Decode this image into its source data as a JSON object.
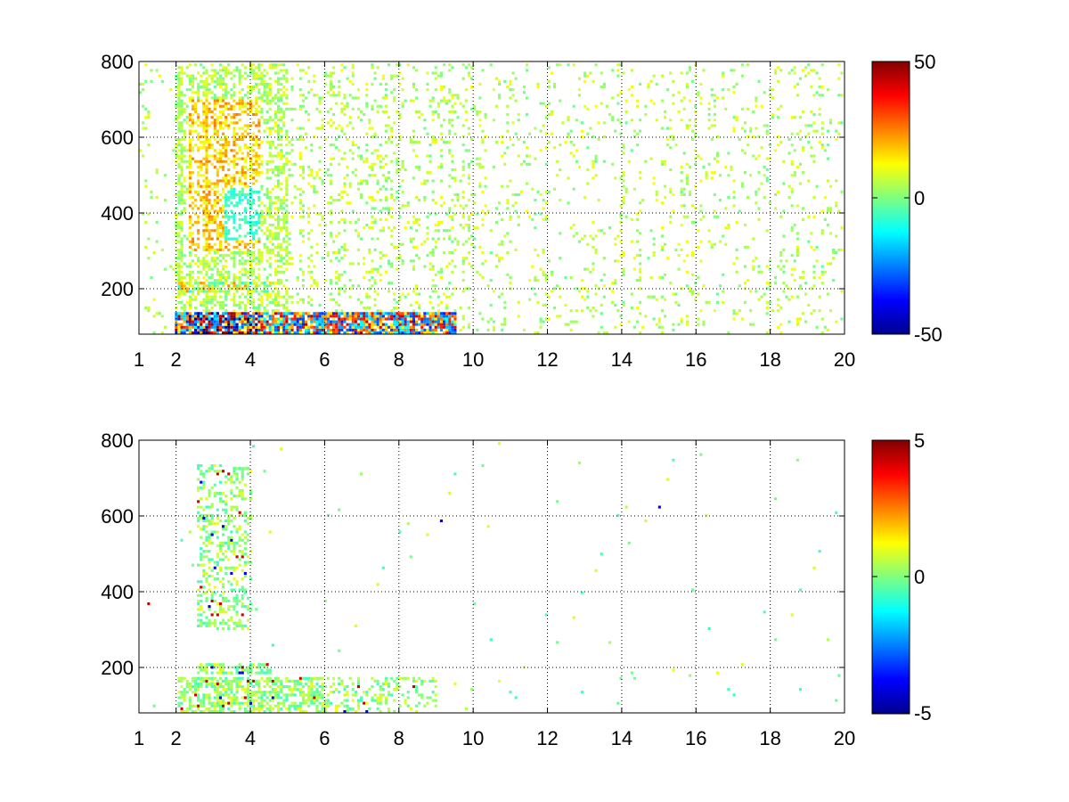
{
  "chart_data": [
    {
      "type": "heatmap",
      "title": "",
      "xlabel": "",
      "ylabel": "",
      "xlim": [
        1,
        20
      ],
      "ylim": [
        80,
        800
      ],
      "x_ticks": [
        1,
        2,
        4,
        6,
        8,
        10,
        12,
        14,
        16,
        18,
        20
      ],
      "x_tick_labels": [
        "1",
        "2",
        "4",
        "6",
        "8",
        "10",
        "12",
        "14",
        "16",
        "18",
        "20"
      ],
      "y_ticks": [
        200,
        400,
        600,
        800
      ],
      "y_tick_labels": [
        "200",
        "400",
        "600",
        "800"
      ],
      "grid": true,
      "colormap": "jet",
      "colorbar": {
        "min": -50,
        "max": 50,
        "ticks": [
          50,
          0,
          -50
        ],
        "tick_labels": [
          "50",
          "0",
          "-50"
        ]
      },
      "summary": {
        "dense_region_x": [
          1.9,
          5.0
        ],
        "strong_band_y": [
          80,
          130
        ],
        "band_extends_to_x": 9.5,
        "sparse_region_x": [
          10,
          20
        ],
        "extreme_values_near_x": 3.0
      }
    },
    {
      "type": "heatmap",
      "title": "",
      "xlabel": "",
      "ylabel": "",
      "xlim": [
        1,
        20
      ],
      "ylim": [
        80,
        800
      ],
      "x_ticks": [
        1,
        2,
        4,
        6,
        8,
        10,
        12,
        14,
        16,
        18,
        20
      ],
      "x_tick_labels": [
        "1",
        "2",
        "4",
        "6",
        "8",
        "10",
        "12",
        "14",
        "16",
        "18",
        "20"
      ],
      "y_ticks": [
        200,
        400,
        600,
        800
      ],
      "y_tick_labels": [
        "200",
        "400",
        "600",
        "800"
      ],
      "grid": true,
      "colormap": "jet",
      "colorbar": {
        "min": -5,
        "max": 5,
        "ticks": [
          5,
          0,
          -5
        ],
        "tick_labels": [
          "5",
          "0",
          "-5"
        ]
      },
      "summary": {
        "dense_region_x": [
          2.5,
          4.0
        ],
        "strong_band_y": [
          80,
          170
        ],
        "band_extends_to_x": 9.0,
        "sparse_region_x": [
          9.5,
          20
        ]
      }
    }
  ]
}
